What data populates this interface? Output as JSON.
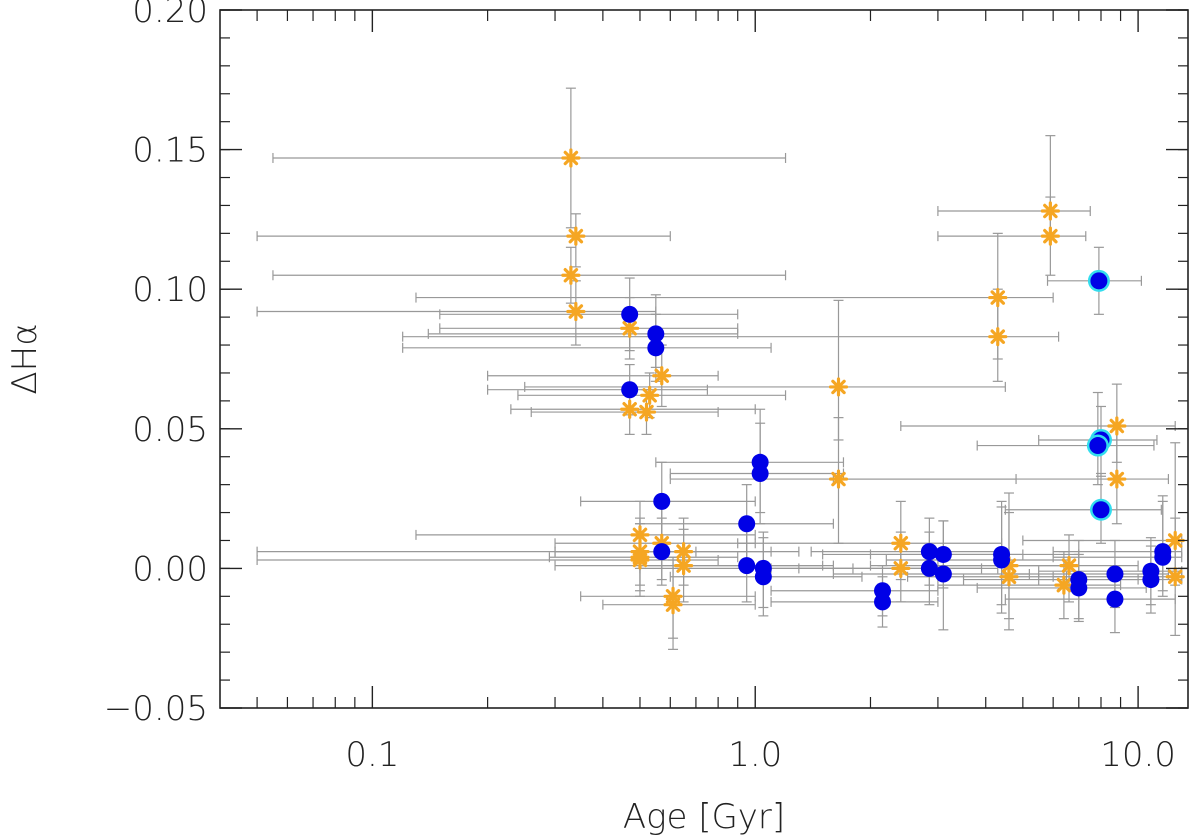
{
  "chart_data": {
    "type": "scatter",
    "title": "",
    "xlabel": "Age [Gyr]",
    "ylabel": "ΔHα",
    "xscale": "log",
    "xlim": [
      0.04,
      13.5
    ],
    "ylim": [
      -0.05,
      0.2
    ],
    "xticks": [
      {
        "value": 0.1,
        "label": "0.1"
      },
      {
        "value": 1.0,
        "label": "1.0"
      },
      {
        "value": 10.0,
        "label": "10.0"
      }
    ],
    "yticks": [
      {
        "value": -0.05,
        "label": "−0.05"
      },
      {
        "value": 0.0,
        "label": "0.00"
      },
      {
        "value": 0.05,
        "label": "0.05"
      },
      {
        "value": 0.1,
        "label": "0.10"
      },
      {
        "value": 0.15,
        "label": "0.15"
      },
      {
        "value": 0.2,
        "label": "0.20"
      }
    ],
    "colors": {
      "errorbar": "#999999",
      "star": "#f5a623",
      "circle": "#0000e6",
      "circle_ring": "#33ddee"
    },
    "series": [
      {
        "name": "stars",
        "marker": "asterisk",
        "points": [
          {
            "x": 0.33,
            "y": 0.147,
            "xlo": 0.055,
            "xhi": 1.2,
            "ylo": 0.122,
            "yhi": 0.172
          },
          {
            "x": 0.34,
            "y": 0.119,
            "xlo": 0.05,
            "xhi": 0.6,
            "ylo": 0.108,
            "yhi": 0.127
          },
          {
            "x": 0.33,
            "y": 0.105,
            "xlo": 0.055,
            "xhi": 1.2,
            "ylo": 0.095,
            "yhi": 0.115
          },
          {
            "x": 0.34,
            "y": 0.092,
            "xlo": 0.05,
            "xhi": 0.55,
            "ylo": 0.08,
            "yhi": 0.103
          },
          {
            "x": 0.47,
            "y": 0.086,
            "xlo": 0.15,
            "xhi": 0.9,
            "ylo": 0.075,
            "yhi": 0.097
          },
          {
            "x": 0.57,
            "y": 0.069,
            "xlo": 0.2,
            "xhi": 0.8,
            "ylo": 0.058,
            "yhi": 0.08
          },
          {
            "x": 0.53,
            "y": 0.062,
            "xlo": 0.24,
            "xhi": 1.2,
            "ylo": 0.054,
            "yhi": 0.07
          },
          {
            "x": 0.47,
            "y": 0.057,
            "xlo": 0.23,
            "xhi": 1.0,
            "ylo": 0.048,
            "yhi": 0.066
          },
          {
            "x": 0.52,
            "y": 0.056,
            "xlo": 0.26,
            "xhi": 0.8,
            "ylo": 0.048,
            "yhi": 0.064
          },
          {
            "x": 1.65,
            "y": 0.065,
            "xlo": 0.25,
            "xhi": 4.5,
            "ylo": 0.046,
            "yhi": 0.096
          },
          {
            "x": 1.65,
            "y": 0.032,
            "xlo": 0.6,
            "xhi": 4.8,
            "ylo": 0.009,
            "yhi": 0.054
          },
          {
            "x": 4.3,
            "y": 0.097,
            "xlo": 0.13,
            "xhi": 6.0,
            "ylo": 0.075,
            "yhi": 0.12
          },
          {
            "x": 4.3,
            "y": 0.083,
            "xlo": 0.12,
            "xhi": 6.2,
            "ylo": 0.067,
            "yhi": 0.1
          },
          {
            "x": 5.9,
            "y": 0.128,
            "xlo": 3.0,
            "xhi": 7.5,
            "ylo": 0.12,
            "yhi": 0.155
          },
          {
            "x": 5.9,
            "y": 0.119,
            "xlo": 3.0,
            "xhi": 7.3,
            "ylo": 0.105,
            "yhi": 0.133
          },
          {
            "x": 8.8,
            "y": 0.051,
            "xlo": 2.4,
            "xhi": 12.5,
            "ylo": 0.038,
            "yhi": 0.066
          },
          {
            "x": 8.8,
            "y": 0.032,
            "xlo": 1.6,
            "xhi": 12.0,
            "ylo": 0.016,
            "yhi": 0.05
          },
          {
            "x": 0.5,
            "y": 0.012,
            "xlo": 0.13,
            "xhi": 1.0,
            "ylo": 0.0,
            "yhi": 0.024
          },
          {
            "x": 0.5,
            "y": 0.006,
            "xlo": 0.05,
            "xhi": 0.7,
            "ylo": -0.006,
            "yhi": 0.018
          },
          {
            "x": 0.5,
            "y": 0.004,
            "xlo": 0.29,
            "xhi": 0.9,
            "ylo": -0.008,
            "yhi": 0.016
          },
          {
            "x": 0.5,
            "y": 0.003,
            "xlo": 0.05,
            "xhi": 0.8,
            "ylo": -0.01,
            "yhi": 0.016
          },
          {
            "x": 0.57,
            "y": 0.009,
            "xlo": 0.3,
            "xhi": 1.0,
            "ylo": -0.004,
            "yhi": 0.024
          },
          {
            "x": 0.65,
            "y": 0.006,
            "xlo": 0.3,
            "xhi": 1.3,
            "ylo": -0.006,
            "yhi": 0.018
          },
          {
            "x": 0.65,
            "y": 0.001,
            "xlo": 0.3,
            "xhi": 1.5,
            "ylo": -0.012,
            "yhi": 0.014
          },
          {
            "x": 0.61,
            "y": -0.01,
            "xlo": 0.35,
            "xhi": 1.0,
            "ylo": -0.025,
            "yhi": 0.004
          },
          {
            "x": 0.61,
            "y": -0.013,
            "xlo": 0.4,
            "xhi": 1.0,
            "ylo": -0.029,
            "yhi": 0.003
          },
          {
            "x": 2.4,
            "y": 0.009,
            "xlo": 0.9,
            "xhi": 4.4,
            "ylo": -0.004,
            "yhi": 0.024
          },
          {
            "x": 2.4,
            "y": 0.0,
            "xlo": 1.1,
            "xhi": 3.9,
            "ylo": -0.012,
            "yhi": 0.013
          },
          {
            "x": 4.6,
            "y": 0.001,
            "xlo": 2.0,
            "xhi": 7.0,
            "ylo": -0.018,
            "yhi": 0.027
          },
          {
            "x": 4.6,
            "y": -0.003,
            "xlo": 2.5,
            "xhi": 6.5,
            "ylo": -0.022,
            "yhi": 0.02
          },
          {
            "x": 6.6,
            "y": 0.001,
            "xlo": 3.0,
            "xhi": 10.0,
            "ylo": -0.012,
            "yhi": 0.012
          },
          {
            "x": 6.4,
            "y": -0.006,
            "xlo": 3.0,
            "xhi": 9.0,
            "ylo": -0.018,
            "yhi": 0.006
          },
          {
            "x": 12.5,
            "y": 0.01,
            "xlo": 5.0,
            "xhi": 13.0,
            "ylo": -0.006,
            "yhi": 0.045
          },
          {
            "x": 12.5,
            "y": -0.003,
            "xlo": 6.0,
            "xhi": 13.0,
            "ylo": -0.024,
            "yhi": 0.018
          }
        ]
      },
      {
        "name": "dots",
        "marker": "circle",
        "points": [
          {
            "x": 0.47,
            "y": 0.091,
            "xlo": 0.15,
            "xhi": 0.9,
            "ylo": 0.078,
            "yhi": 0.104
          },
          {
            "x": 0.55,
            "y": 0.084,
            "xlo": 0.14,
            "xhi": 0.9,
            "ylo": 0.072,
            "yhi": 0.098
          },
          {
            "x": 0.55,
            "y": 0.079,
            "xlo": 0.12,
            "xhi": 1.1,
            "ylo": 0.067,
            "yhi": 0.091
          },
          {
            "x": 0.47,
            "y": 0.064,
            "xlo": 0.2,
            "xhi": 0.75,
            "ylo": 0.055,
            "yhi": 0.073
          },
          {
            "x": 0.57,
            "y": 0.024,
            "xlo": 0.35,
            "xhi": 1.0,
            "ylo": 0.01,
            "yhi": 0.038
          },
          {
            "x": 0.57,
            "y": 0.006,
            "xlo": 0.3,
            "xhi": 1.1,
            "ylo": -0.006,
            "yhi": 0.018
          },
          {
            "x": 1.03,
            "y": 0.038,
            "xlo": 0.55,
            "xhi": 1.7,
            "ylo": 0.02,
            "yhi": 0.057
          },
          {
            "x": 1.03,
            "y": 0.034,
            "xlo": 0.6,
            "xhi": 1.7,
            "ylo": 0.016,
            "yhi": 0.052
          },
          {
            "x": 0.95,
            "y": 0.016,
            "xlo": 0.5,
            "xhi": 1.6,
            "ylo": 0.002,
            "yhi": 0.03
          },
          {
            "x": 0.95,
            "y": 0.001,
            "xlo": 0.5,
            "xhi": 1.6,
            "ylo": -0.012,
            "yhi": 0.014
          },
          {
            "x": 1.05,
            "y": 0.0,
            "xlo": 0.5,
            "xhi": 1.8,
            "ylo": -0.014,
            "yhi": 0.013
          },
          {
            "x": 1.05,
            "y": -0.003,
            "xlo": 0.6,
            "xhi": 1.9,
            "ylo": -0.017,
            "yhi": 0.011
          },
          {
            "x": 2.15,
            "y": -0.008,
            "xlo": 1.1,
            "xhi": 3.0,
            "ylo": -0.017,
            "yhi": 0.001
          },
          {
            "x": 2.15,
            "y": -0.012,
            "xlo": 1.1,
            "xhi": 3.0,
            "ylo": -0.021,
            "yhi": -0.003
          },
          {
            "x": 2.85,
            "y": 0.006,
            "xlo": 1.4,
            "xhi": 4.4,
            "ylo": -0.006,
            "yhi": 0.018
          },
          {
            "x": 2.85,
            "y": 0.0,
            "xlo": 1.3,
            "xhi": 4.3,
            "ylo": -0.013,
            "yhi": 0.013
          },
          {
            "x": 3.1,
            "y": 0.005,
            "xlo": 1.5,
            "xhi": 5.0,
            "ylo": -0.007,
            "yhi": 0.017
          },
          {
            "x": 3.1,
            "y": -0.002,
            "xlo": 1.6,
            "xhi": 5.2,
            "ylo": -0.022,
            "yhi": 0.017
          },
          {
            "x": 4.4,
            "y": 0.005,
            "xlo": 2.0,
            "xhi": 7.0,
            "ylo": -0.013,
            "yhi": 0.024
          },
          {
            "x": 4.4,
            "y": 0.003,
            "xlo": 2.2,
            "xhi": 6.6,
            "ylo": -0.016,
            "yhi": 0.022
          },
          {
            "x": 7.0,
            "y": -0.004,
            "xlo": 3.5,
            "xhi": 10.0,
            "ylo": -0.018,
            "yhi": 0.01
          },
          {
            "x": 7.0,
            "y": -0.007,
            "xlo": 3.8,
            "xhi": 10.5,
            "ylo": -0.019,
            "yhi": 0.005
          },
          {
            "x": 8.7,
            "y": -0.002,
            "xlo": 4.5,
            "xhi": 12.0,
            "ylo": -0.014,
            "yhi": 0.01
          },
          {
            "x": 8.7,
            "y": -0.011,
            "xlo": 4.5,
            "xhi": 12.5,
            "ylo": -0.023,
            "yhi": 0.001
          },
          {
            "x": 10.8,
            "y": -0.001,
            "xlo": 5.5,
            "xhi": 13.0,
            "ylo": -0.013,
            "yhi": 0.011
          },
          {
            "x": 10.8,
            "y": -0.004,
            "xlo": 5.5,
            "xhi": 13.0,
            "ylo": -0.016,
            "yhi": 0.008
          },
          {
            "x": 11.6,
            "y": 0.006,
            "xlo": 6.0,
            "xhi": 13.0,
            "ylo": -0.008,
            "yhi": 0.026
          },
          {
            "x": 11.6,
            "y": 0.004,
            "xlo": 6.0,
            "xhi": 13.0,
            "ylo": -0.01,
            "yhi": 0.024
          },
          {
            "x": 7.9,
            "y": 0.103,
            "xlo": 5.8,
            "xhi": 10.2,
            "ylo": 0.091,
            "yhi": 0.115,
            "ring": true
          },
          {
            "x": 8.0,
            "y": 0.046,
            "xlo": 5.5,
            "xhi": 11.2,
            "ylo": 0.033,
            "yhi": 0.058,
            "ring": true
          },
          {
            "x": 7.85,
            "y": 0.044,
            "xlo": 3.8,
            "xhi": 11.0,
            "ylo": 0.03,
            "yhi": 0.063,
            "ring": true
          },
          {
            "x": 8.0,
            "y": 0.021,
            "xlo": 4.5,
            "xhi": 11.5,
            "ylo": 0.009,
            "yhi": 0.034,
            "ring": true
          }
        ]
      }
    ]
  }
}
